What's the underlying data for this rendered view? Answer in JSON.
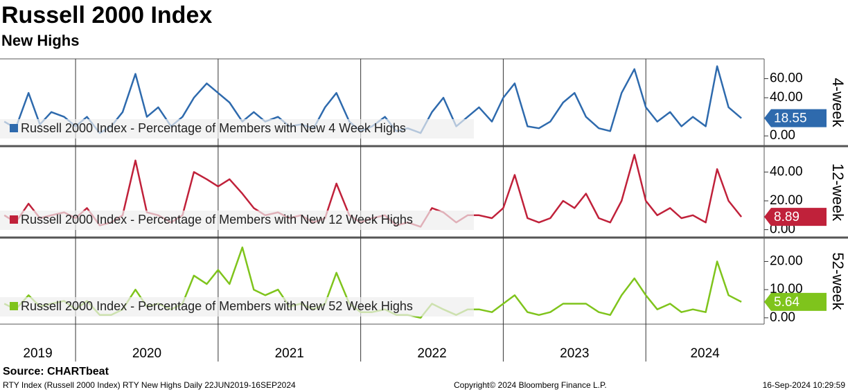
{
  "title": "Russell 2000 Index",
  "subtitle": "New Highs",
  "chart_data": {
    "type": "line",
    "x": [
      2019.5,
      2019.58,
      2019.67,
      2019.75,
      2019.83,
      2019.92,
      2020.0,
      2020.08,
      2020.17,
      2020.25,
      2020.33,
      2020.42,
      2020.5,
      2020.58,
      2020.67,
      2020.75,
      2020.83,
      2020.92,
      2021.0,
      2021.08,
      2021.17,
      2021.25,
      2021.33,
      2021.42,
      2021.5,
      2021.58,
      2021.67,
      2021.75,
      2021.83,
      2021.92,
      2022.0,
      2022.08,
      2022.17,
      2022.25,
      2022.33,
      2022.42,
      2022.5,
      2022.58,
      2022.67,
      2022.75,
      2022.83,
      2022.92,
      2023.0,
      2023.08,
      2023.17,
      2023.25,
      2023.33,
      2023.42,
      2023.5,
      2023.58,
      2023.67,
      2023.75,
      2023.83,
      2023.92,
      2024.0,
      2024.08,
      2024.17,
      2024.25,
      2024.33,
      2024.42,
      2024.5,
      2024.58,
      2024.67
    ],
    "xlim": [
      2019.47,
      2024.83
    ],
    "xticks": [
      2020,
      2021,
      2022,
      2023,
      2024
    ],
    "year_labels": [
      "2019",
      "2020",
      "2021",
      "2022",
      "2023",
      "2024"
    ],
    "grid": true,
    "panels": [
      {
        "label": "4-week",
        "name": "Russell 2000 Index - Percentage of Members with New 4 Week Highs",
        "color": "#2e6aad",
        "ylim": [
          -10,
          80
        ],
        "yticks": [
          {
            "value": 0,
            "label": "0.00"
          },
          {
            "value": 40,
            "label": "40.00"
          },
          {
            "value": 60,
            "label": "60.00"
          }
        ],
        "values": [
          15,
          8,
          45,
          12,
          25,
          20,
          10,
          20,
          3,
          10,
          25,
          65,
          20,
          30,
          10,
          20,
          40,
          55,
          45,
          35,
          15,
          25,
          15,
          20,
          10,
          12,
          8,
          30,
          45,
          15,
          5,
          10,
          20,
          5,
          8,
          3,
          25,
          40,
          10,
          20,
          30,
          15,
          40,
          55,
          10,
          8,
          15,
          35,
          45,
          20,
          8,
          5,
          45,
          70,
          30,
          15,
          25,
          10,
          20,
          10,
          73,
          30,
          18.55
        ],
        "last_value": 18.55
      },
      {
        "label": "12-week",
        "name": "Russell 2000 Index - Percentage of Members with New 12 Week Highs",
        "color": "#c0213a",
        "ylim": [
          -5,
          57
        ],
        "yticks": [
          {
            "value": 0,
            "label": "0.00"
          },
          {
            "value": 20,
            "label": "20.00"
          },
          {
            "value": 40,
            "label": "40.00"
          }
        ],
        "values": [
          10,
          5,
          18,
          8,
          10,
          12,
          8,
          15,
          3,
          5,
          10,
          48,
          12,
          10,
          5,
          10,
          40,
          35,
          30,
          35,
          25,
          15,
          10,
          12,
          8,
          10,
          5,
          8,
          32,
          10,
          5,
          8,
          10,
          3,
          5,
          2,
          15,
          12,
          5,
          10,
          10,
          8,
          15,
          38,
          8,
          5,
          8,
          20,
          15,
          25,
          8,
          5,
          20,
          52,
          20,
          10,
          15,
          8,
          10,
          5,
          42,
          20,
          8.89
        ],
        "last_value": 8.89
      },
      {
        "label": "52-week",
        "name": "Russell 2000 Index - Percentage of Members with New 52 Week Highs",
        "color": "#7fc41c",
        "ylim": [
          -2,
          28
        ],
        "yticks": [
          {
            "value": 0,
            "label": "0.00"
          },
          {
            "value": 10,
            "label": "10.00"
          },
          {
            "value": 20,
            "label": "20.00"
          }
        ],
        "values": [
          5,
          3,
          8,
          4,
          5,
          6,
          3,
          6,
          1,
          1,
          3,
          10,
          4,
          5,
          3,
          5,
          15,
          12,
          17,
          12,
          25,
          10,
          8,
          10,
          4,
          5,
          3,
          5,
          16,
          5,
          2,
          2,
          3,
          1,
          1,
          0,
          5,
          3,
          1,
          3,
          3,
          2,
          5,
          8,
          2,
          1,
          2,
          5,
          5,
          5,
          2,
          1,
          8,
          14,
          8,
          3,
          5,
          2,
          3,
          2,
          20,
          8,
          5.64
        ],
        "last_value": 5.64
      }
    ]
  },
  "footer": {
    "source": "Source: CHARTbeat",
    "description": "RTY Index (Russell 2000 Index) RTY New Highs  Daily 22JUN2019-16SEP2024",
    "copyright": "Copyright© 2024 Bloomberg Finance L.P.",
    "timestamp": "16-Sep-2024 10:29:59"
  }
}
